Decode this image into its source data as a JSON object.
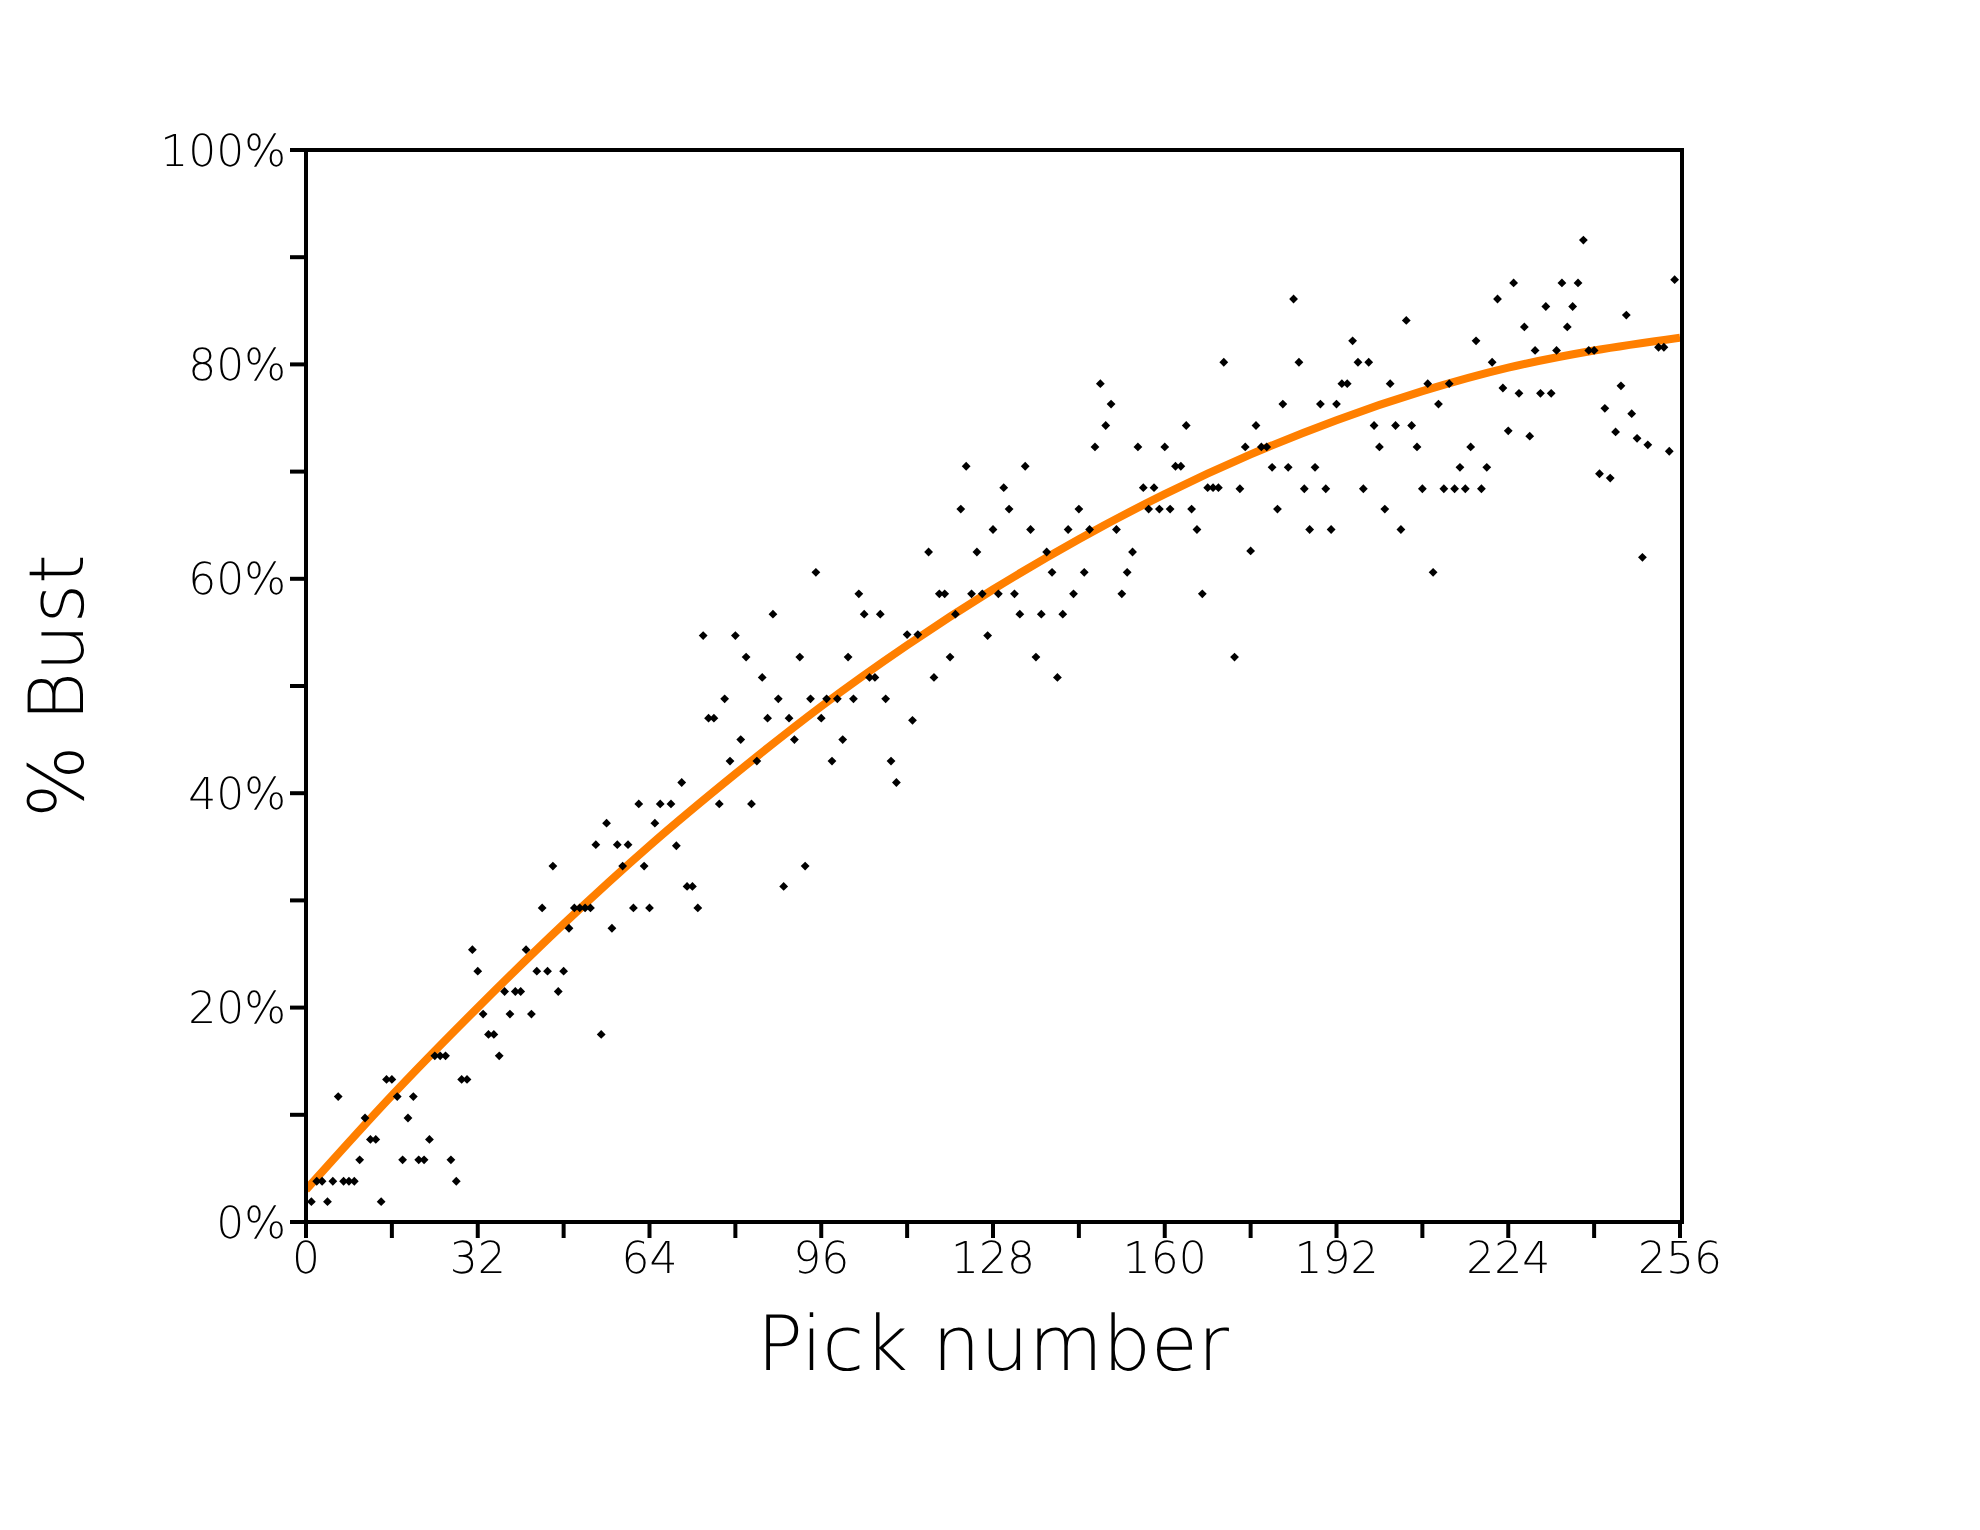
{
  "chart_data": {
    "type": "scatter",
    "xlabel": "Pick number",
    "ylabel": "% Bust",
    "xlim": [
      0,
      256
    ],
    "ylim": [
      0,
      100
    ],
    "xticks": [
      0,
      {
        "value": 16,
        "label": null
      },
      32,
      {
        "value": 48,
        "label": null
      },
      64,
      {
        "value": 80,
        "label": null
      },
      96,
      {
        "value": 112,
        "label": null
      },
      128,
      {
        "value": 144,
        "label": null
      },
      160,
      {
        "value": 176,
        "label": null
      },
      192,
      {
        "value": 208,
        "label": null
      },
      224,
      {
        "value": 240,
        "label": null
      },
      256
    ],
    "yticks": [
      {
        "value": 0,
        "label": "0%"
      },
      {
        "value": 10,
        "label": null
      },
      {
        "value": 20,
        "label": "20%"
      },
      {
        "value": 30,
        "label": null
      },
      {
        "value": 40,
        "label": "40%"
      },
      {
        "value": 50,
        "label": null
      },
      {
        "value": 60,
        "label": "60%"
      },
      {
        "value": 70,
        "label": null
      },
      {
        "value": 80,
        "label": "80%"
      },
      {
        "value": 90,
        "label": null
      },
      {
        "value": 100,
        "label": "100%"
      }
    ],
    "marker": "diamond",
    "series": [
      {
        "color": "#000000",
        "x": [
          1,
          2,
          3,
          4,
          5,
          6,
          7,
          8,
          9,
          10,
          11,
          12,
          13,
          14,
          15,
          16,
          17,
          18,
          19,
          20,
          21,
          22,
          23,
          24,
          25,
          26,
          27,
          28,
          29,
          30,
          31,
          32,
          33,
          34,
          35,
          36,
          37,
          38,
          39,
          40,
          41,
          42,
          43,
          44,
          45,
          46,
          47,
          48,
          49,
          50,
          51,
          52,
          53,
          54,
          55,
          56,
          57,
          58,
          59,
          60,
          61,
          62,
          63,
          64,
          65,
          66,
          68,
          69,
          70,
          71,
          72,
          73,
          74,
          75,
          76,
          77,
          78,
          79,
          80,
          81,
          82,
          83,
          84,
          85,
          86,
          87,
          88,
          89,
          90,
          91,
          92,
          93,
          94,
          95,
          96,
          97,
          98,
          99,
          100,
          101,
          102,
          103,
          104,
          105,
          106,
          107,
          108,
          109,
          110,
          112,
          113,
          114,
          116,
          117,
          118,
          119,
          120,
          121,
          122,
          123,
          124,
          125,
          126,
          127,
          128,
          129,
          130,
          131,
          132,
          133,
          134,
          135,
          136,
          137,
          138,
          139,
          140,
          141,
          142,
          143,
          144,
          145,
          146,
          147,
          148,
          149,
          150,
          151,
          152,
          153,
          154,
          155,
          156,
          157,
          158,
          159,
          160,
          161,
          162,
          163,
          164,
          165,
          166,
          167,
          168,
          169,
          170,
          171,
          173,
          174,
          175,
          176,
          177,
          178,
          179,
          180,
          181,
          182,
          183,
          184,
          185,
          186,
          187,
          188,
          189,
          190,
          191,
          192,
          193,
          194,
          195,
          196,
          197,
          198,
          199,
          200,
          201,
          202,
          203,
          204,
          205,
          206,
          207,
          208,
          209,
          210,
          211,
          212,
          213,
          214,
          215,
          216,
          217,
          218,
          219,
          220,
          221,
          222,
          223,
          224,
          225,
          226,
          227,
          228,
          229,
          230,
          231,
          232,
          233,
          234,
          235,
          236,
          237,
          238,
          239,
          240,
          241,
          242,
          243,
          244,
          245,
          246,
          247,
          248,
          249,
          250,
          252,
          253,
          254,
          255
        ],
        "values": [
          1.9,
          3.8,
          3.8,
          1.9,
          3.8,
          11.7,
          3.8,
          3.8,
          3.8,
          5.8,
          9.7,
          7.7,
          7.7,
          1.9,
          13.3,
          13.3,
          11.7,
          5.8,
          9.7,
          11.7,
          5.8,
          5.8,
          7.7,
          15.5,
          15.5,
          15.5,
          5.8,
          3.8,
          13.3,
          13.3,
          25.4,
          23.4,
          19.4,
          17.5,
          17.5,
          15.5,
          21.5,
          19.4,
          21.5,
          21.5,
          25.4,
          19.4,
          23.4,
          29.3,
          23.4,
          33.2,
          21.5,
          23.4,
          27.4,
          29.3,
          29.3,
          29.3,
          29.3,
          35.2,
          17.5,
          37.2,
          27.4,
          35.2,
          33.2,
          35.2,
          29.3,
          39.0,
          33.2,
          29.3,
          37.2,
          39.0,
          39.0,
          35.1,
          41.0,
          31.3,
          31.3,
          29.3,
          54.7,
          47.0,
          47.0,
          39.0,
          48.8,
          43.0,
          54.7,
          45.0,
          52.7,
          39.0,
          43.0,
          50.8,
          47.0,
          56.7,
          48.8,
          31.3,
          47.0,
          45.0,
          52.7,
          33.2,
          48.8,
          60.6,
          47.0,
          48.8,
          43.0,
          48.8,
          45.0,
          52.7,
          48.8,
          58.6,
          56.7,
          50.8,
          50.8,
          56.7,
          48.8,
          43.0,
          41.0,
          54.8,
          46.8,
          54.8,
          62.5,
          50.8,
          58.6,
          58.6,
          52.7,
          56.7,
          66.5,
          70.5,
          58.6,
          62.5,
          58.6,
          54.7,
          64.6,
          58.6,
          68.5,
          66.5,
          58.6,
          56.7,
          70.5,
          64.6,
          52.7,
          56.7,
          62.5,
          60.6,
          50.8,
          56.7,
          64.6,
          58.6,
          66.5,
          60.6,
          64.6,
          72.3,
          78.2,
          74.3,
          76.3,
          64.6,
          58.6,
          60.6,
          62.5,
          72.3,
          68.5,
          66.5,
          68.5,
          66.5,
          72.3,
          66.5,
          70.5,
          70.5,
          74.3,
          66.5,
          64.6,
          58.6,
          68.5,
          68.5,
          68.5,
          80.2,
          52.7,
          68.4,
          72.3,
          62.6,
          74.3,
          72.3,
          72.3,
          70.4,
          66.5,
          76.3,
          70.4,
          86.1,
          80.2,
          68.4,
          64.6,
          70.4,
          76.3,
          68.4,
          64.6,
          76.3,
          78.2,
          78.2,
          82.2,
          80.2,
          68.4,
          80.2,
          74.3,
          72.3,
          66.5,
          78.2,
          74.3,
          64.6,
          84.1,
          74.3,
          72.3,
          68.4,
          78.2,
          60.6,
          76.3,
          68.4,
          78.2,
          68.4,
          70.4,
          68.4,
          72.3,
          82.2,
          68.4,
          70.4,
          80.2,
          86.1,
          77.8,
          73.8,
          87.6,
          77.3,
          83.5,
          73.3,
          81.3,
          77.3,
          85.4,
          77.3,
          81.3,
          87.6,
          83.5,
          85.4,
          87.6,
          91.6,
          81.3,
          81.3,
          69.8,
          75.9,
          69.4,
          73.7,
          78.0,
          84.6,
          75.4,
          73.1,
          62.0,
          72.5,
          81.6,
          81.6,
          71.9,
          87.9
        ]
      },
      {
        "type": "line",
        "color": "#ff7f00",
        "marker": "none",
        "x": [
          0,
          16,
          32,
          48,
          64,
          80,
          96,
          112,
          128,
          144,
          160,
          176,
          192,
          208,
          224,
          240,
          256
        ],
        "values": [
          3.0,
          11.8,
          20.0,
          27.8,
          35.1,
          41.8,
          48.1,
          53.8,
          59.0,
          63.7,
          67.9,
          71.6,
          74.8,
          77.5,
          79.7,
          81.3,
          82.5
        ]
      }
    ]
  }
}
